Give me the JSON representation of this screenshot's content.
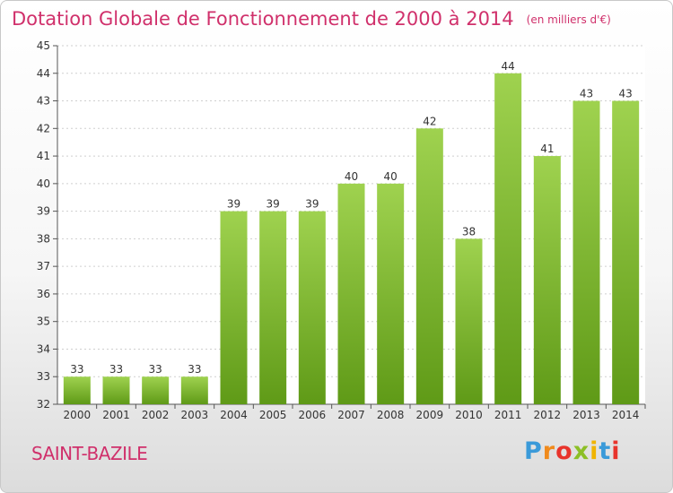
{
  "chart_data": {
    "type": "bar",
    "title": "Dotation Globale de Fonctionnement de 2000 à 2014",
    "subtitle": "(en milliers d'€)",
    "categories": [
      "2000",
      "2001",
      "2002",
      "2003",
      "2004",
      "2005",
      "2006",
      "2007",
      "2008",
      "2009",
      "2010",
      "2011",
      "2012",
      "2013",
      "2014"
    ],
    "values": [
      33,
      33,
      33,
      33,
      39,
      39,
      39,
      40,
      40,
      42,
      38,
      44,
      41,
      43,
      43
    ],
    "ylim": [
      32,
      45
    ],
    "yticks": [
      32,
      33,
      34,
      35,
      36,
      37,
      38,
      39,
      40,
      41,
      42,
      43,
      44,
      45
    ],
    "grid": true,
    "bar_color": "#7ab92e"
  },
  "footer": {
    "commune": "SAINT-BAZILE",
    "logo": "Proxiti",
    "logo_colors": [
      "#3a9ad9",
      "#f08a1c",
      "#e8342c",
      "#8cbf26",
      "#f0b400",
      "#3a9ad9",
      "#e8342c"
    ]
  }
}
